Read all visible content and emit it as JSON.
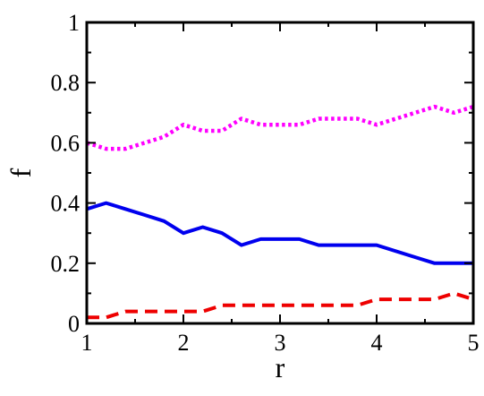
{
  "chart_data": {
    "type": "line",
    "title": "",
    "xlabel": "r",
    "ylabel": "f",
    "xlim": [
      1,
      5
    ],
    "ylim": [
      0,
      1
    ],
    "x_ticks": [
      1,
      2,
      3,
      4,
      5
    ],
    "y_ticks": [
      0,
      0.2,
      0.4,
      0.6,
      0.8,
      1
    ],
    "x_tick_labels": [
      "1",
      "2",
      "3",
      "4",
      "5"
    ],
    "y_tick_labels": [
      "0",
      "0.2",
      "0.4",
      "0.6",
      "0.8",
      "1"
    ],
    "grid": false,
    "series": [
      {
        "style": "dotted",
        "color": "#ff00ff",
        "x": [
          1.0,
          1.2,
          1.4,
          1.6,
          1.8,
          2.0,
          2.2,
          2.4,
          2.6,
          2.8,
          3.0,
          3.2,
          3.4,
          3.6,
          3.8,
          4.0,
          4.2,
          4.4,
          4.6,
          4.8,
          5.0
        ],
        "y": [
          0.6,
          0.58,
          0.58,
          0.6,
          0.62,
          0.66,
          0.64,
          0.64,
          0.68,
          0.66,
          0.66,
          0.66,
          0.68,
          0.68,
          0.68,
          0.66,
          0.68,
          0.7,
          0.72,
          0.7,
          0.72
        ]
      },
      {
        "style": "solid",
        "color": "#0000ee",
        "x": [
          1.0,
          1.2,
          1.4,
          1.6,
          1.8,
          2.0,
          2.2,
          2.4,
          2.6,
          2.8,
          3.0,
          3.2,
          3.4,
          3.6,
          3.8,
          4.0,
          4.2,
          4.4,
          4.6,
          4.8,
          5.0
        ],
        "y": [
          0.38,
          0.4,
          0.38,
          0.36,
          0.34,
          0.3,
          0.32,
          0.3,
          0.26,
          0.28,
          0.28,
          0.28,
          0.26,
          0.26,
          0.26,
          0.26,
          0.24,
          0.22,
          0.2,
          0.2,
          0.2
        ]
      },
      {
        "style": "dashed",
        "color": "#ee0000",
        "x": [
          1.0,
          1.2,
          1.4,
          1.6,
          1.8,
          2.0,
          2.2,
          2.4,
          2.6,
          2.8,
          3.0,
          3.2,
          3.4,
          3.6,
          3.8,
          4.0,
          4.2,
          4.4,
          4.6,
          4.8,
          5.0
        ],
        "y": [
          0.02,
          0.02,
          0.04,
          0.04,
          0.04,
          0.04,
          0.04,
          0.06,
          0.06,
          0.06,
          0.06,
          0.06,
          0.06,
          0.06,
          0.06,
          0.08,
          0.08,
          0.08,
          0.08,
          0.1,
          0.08
        ]
      }
    ]
  }
}
